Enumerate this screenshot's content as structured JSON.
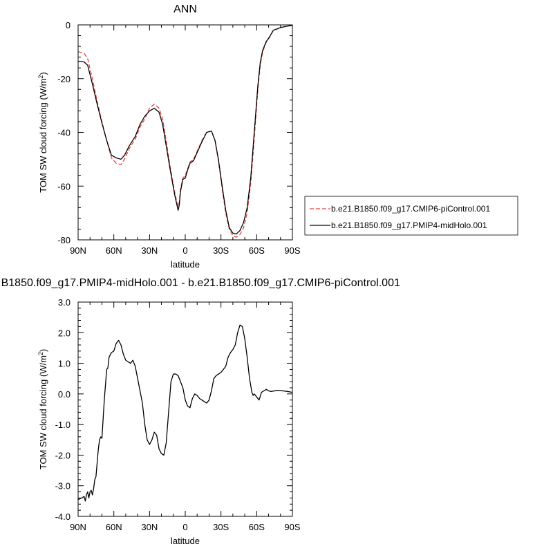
{
  "chart_data": [
    {
      "type": "line",
      "title": "ANN",
      "xlabel": "latitude",
      "ylabel": "TOM SW cloud forcing (W/m",
      "ylabel_sup": "2",
      "ylabel_close": ")",
      "xlim": [
        90,
        -90
      ],
      "ylim": [
        -80,
        0
      ],
      "xticks": [
        90,
        60,
        30,
        0,
        -30,
        -60,
        -90
      ],
      "xtick_labels": [
        "90N",
        "60N",
        "30N",
        "0",
        "30S",
        "60S",
        "90S"
      ],
      "yticks": [
        0,
        -20,
        -40,
        -60,
        -80
      ],
      "ytick_labels": [
        "0",
        "-20",
        "-40",
        "-60",
        "-80"
      ],
      "grid": false,
      "legend_position": "right",
      "series": [
        {
          "name": "b.e21.B1850.f09_g17.CMIP6-piControl.001",
          "color": "#e8423f",
          "dash": "dashed",
          "x": [
            90,
            85,
            82,
            78,
            74,
            70,
            66,
            62,
            58,
            54,
            51,
            47,
            42,
            38,
            34,
            30,
            26,
            22,
            19,
            16,
            13,
            11,
            9,
            7,
            6,
            5,
            4,
            2,
            0,
            -2,
            -4,
            -7,
            -10,
            -14,
            -18,
            -22,
            -25,
            -28,
            -31,
            -34,
            -37,
            -40,
            -43,
            -46,
            -49,
            -52,
            -55,
            -57,
            -59,
            -61,
            -63,
            -65,
            -68,
            -71,
            -74,
            -77,
            -80,
            -84,
            -88,
            -90
          ],
          "y": [
            -10,
            -10.5,
            -12.5,
            -20,
            -28.5,
            -36,
            -43,
            -49.5,
            -51.5,
            -52,
            -50,
            -46,
            -42.5,
            -38,
            -35,
            -31,
            -29.5,
            -31,
            -35,
            -43,
            -52,
            -57,
            -62,
            -66,
            -67.5,
            -66,
            -61,
            -57,
            -56,
            -53.5,
            -51,
            -50,
            -47,
            -43,
            -40,
            -39.5,
            -43,
            -51,
            -61,
            -70,
            -76,
            -78.5,
            -79,
            -78,
            -75.5,
            -70,
            -59,
            -48,
            -36,
            -24,
            -15,
            -10,
            -6.5,
            -4.5,
            -2,
            -1.5,
            -1,
            -0.6,
            -0.3,
            -0.2
          ]
        },
        {
          "name": "b.e21.B1850.f09_g17.PMIP4-midHolo.001",
          "color": "#000000",
          "dash": "solid",
          "x": [
            90,
            85,
            82,
            78,
            74,
            70,
            66,
            62,
            58,
            54,
            51,
            47,
            42,
            38,
            34,
            30,
            26,
            22,
            19,
            16,
            13,
            11,
            9,
            7,
            6,
            5,
            4,
            2,
            0,
            -2,
            -4,
            -7,
            -10,
            -14,
            -18,
            -22,
            -25,
            -28,
            -31,
            -34,
            -37,
            -40,
            -43,
            -46,
            -49,
            -52,
            -55,
            -57,
            -59,
            -61,
            -63,
            -65,
            -68,
            -71,
            -74,
            -77,
            -80,
            -84,
            -88,
            -90
          ],
          "y": [
            -13.5,
            -13.8,
            -15,
            -22,
            -29.5,
            -36.5,
            -43,
            -48.5,
            -49.5,
            -50,
            -48.5,
            -45,
            -41.5,
            -37,
            -34,
            -32,
            -31,
            -32.5,
            -37,
            -45,
            -53,
            -58,
            -63,
            -67,
            -69,
            -67,
            -62,
            -57.5,
            -57,
            -54,
            -51.5,
            -50.5,
            -47.5,
            -43.5,
            -40,
            -39.5,
            -43,
            -50.5,
            -60,
            -69,
            -75.5,
            -77.5,
            -77.8,
            -76.5,
            -73.5,
            -68,
            -57,
            -45.5,
            -34,
            -22.5,
            -14,
            -9.5,
            -6.2,
            -4.3,
            -2,
            -1.5,
            -1,
            -0.6,
            -0.3,
            -0.2
          ]
        }
      ]
    },
    {
      "type": "line",
      "title": "b.e21.B1850.f09_g17.PMIP4-midHolo.001 - b.e21.B1850.f09_g17.CMIP6-piControl.001",
      "xlabel": "latitude",
      "ylabel": "TOM SW cloud forcing (W/m",
      "ylabel_sup": "2",
      "ylabel_close": ")",
      "xlim": [
        90,
        -90
      ],
      "ylim": [
        -4,
        3
      ],
      "xticks": [
        90,
        60,
        30,
        0,
        -30,
        -60,
        -90
      ],
      "xtick_labels": [
        "90N",
        "60N",
        "30N",
        "0",
        "30S",
        "60S",
        "90S"
      ],
      "yticks": [
        3,
        2,
        1,
        0,
        -1,
        -2,
        -3,
        -4
      ],
      "ytick_labels": [
        "3.0",
        "2.0",
        "1.0",
        "0.0",
        "-1.0",
        "-2.0",
        "-3.0",
        "-4.0"
      ],
      "grid": false,
      "series": [
        {
          "color": "#000000",
          "dash": "solid",
          "x": [
            90,
            87,
            85,
            84,
            83,
            82,
            81,
            80,
            79,
            78,
            77,
            76,
            75,
            73,
            72,
            71,
            70,
            68,
            66,
            65,
            64,
            62,
            60,
            58,
            56,
            54,
            52,
            50,
            48,
            46,
            44,
            42,
            40,
            38,
            36,
            34,
            32,
            30,
            28,
            26,
            24,
            22,
            20,
            18,
            16,
            14,
            12,
            10,
            8,
            6,
            4,
            2,
            0,
            -2,
            -4,
            -6,
            -8,
            -10,
            -12,
            -14,
            -16,
            -18,
            -20,
            -22,
            -24,
            -26,
            -28,
            -30,
            -32,
            -34,
            -36,
            -38,
            -40,
            -42,
            -44,
            -46,
            -48,
            -50,
            -52,
            -54,
            -56,
            -57,
            -58,
            -60,
            -62,
            -64,
            -66,
            -67,
            -68,
            -70,
            -72,
            -75,
            -78,
            -82,
            -86,
            -90
          ],
          "y": [
            -3.45,
            -3.4,
            -3.35,
            -3.5,
            -3.3,
            -3.2,
            -3.4,
            -3.2,
            -3.15,
            -3.3,
            -3.1,
            -2.8,
            -2.7,
            -1.8,
            -1.5,
            -1.4,
            -1.45,
            -0.2,
            0.8,
            0.85,
            1.2,
            1.35,
            1.4,
            1.65,
            1.75,
            1.6,
            1.3,
            1.1,
            1.05,
            1.0,
            1.1,
            0.9,
            0.5,
            0.1,
            -0.3,
            -1.0,
            -1.5,
            -1.65,
            -1.5,
            -1.25,
            -1.35,
            -1.8,
            -1.95,
            -2.0,
            -1.6,
            -0.6,
            0.4,
            0.65,
            0.65,
            0.6,
            0.4,
            0.2,
            -0.2,
            -0.4,
            -0.45,
            -0.15,
            0.0,
            -0.05,
            -0.15,
            -0.2,
            -0.25,
            -0.3,
            -0.2,
            0.1,
            0.5,
            0.6,
            0.65,
            0.7,
            0.8,
            0.9,
            1.2,
            1.35,
            1.45,
            1.6,
            2.0,
            2.25,
            2.2,
            1.8,
            1.2,
            0.5,
            0.05,
            -0.05,
            0.0,
            -0.1,
            -0.2,
            0.05,
            0.1,
            0.12,
            0.15,
            0.1,
            0.08,
            0.1,
            0.12,
            0.1,
            0.08,
            0.05
          ]
        }
      ]
    }
  ]
}
